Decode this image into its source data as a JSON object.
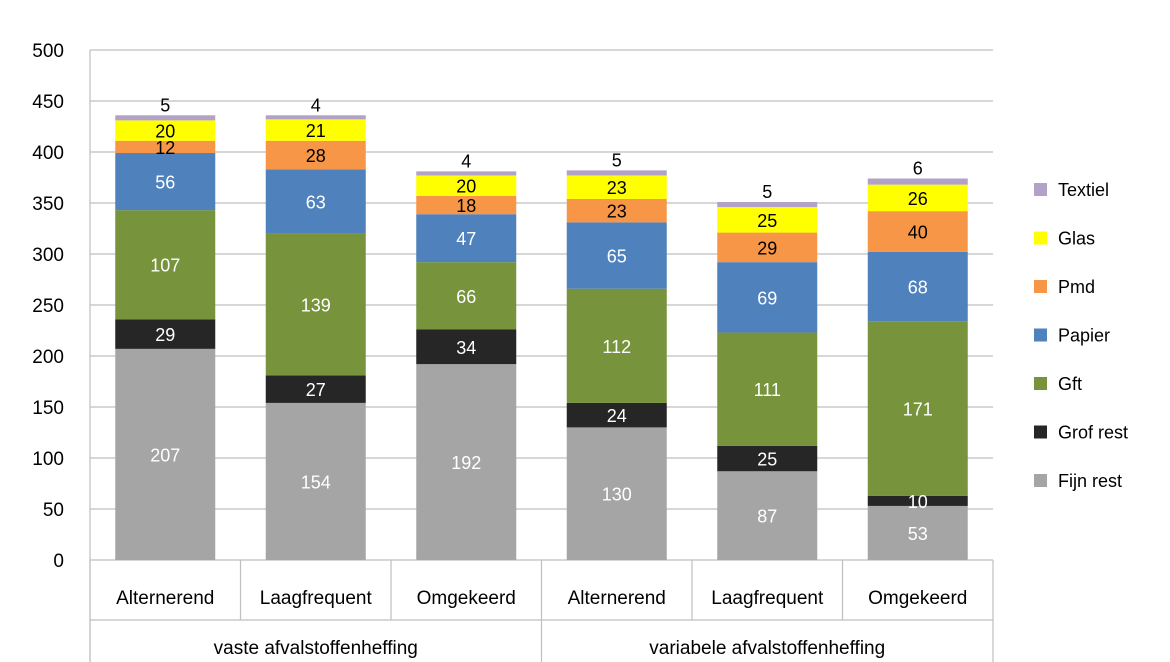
{
  "chart_data": {
    "type": "bar",
    "stacked": true,
    "title": "",
    "xlabel": "",
    "ylabel": "",
    "ylim": [
      0,
      500
    ],
    "yticks": [
      0,
      50,
      100,
      150,
      200,
      250,
      300,
      350,
      400,
      450,
      500
    ],
    "grid": true,
    "legend_position": "right",
    "categories": [
      "Alternerend",
      "Laagfrequent",
      "Omgekeerd",
      "Alternerend",
      "Laagfrequent",
      "Omgekeerd"
    ],
    "groups": [
      {
        "label": "vaste afvalstoffenheffing",
        "categories": [
          0,
          1,
          2
        ]
      },
      {
        "label": "variabele afvalstoffenheffing",
        "categories": [
          3,
          4,
          5
        ]
      }
    ],
    "series": [
      {
        "name": "Fijn rest",
        "color": "#a5a5a5",
        "label_color": "#ffffff",
        "values": [
          207,
          154,
          192,
          130,
          87,
          53
        ]
      },
      {
        "name": "Grof rest",
        "color": "#262626",
        "label_color": "#ffffff",
        "values": [
          29,
          27,
          34,
          24,
          25,
          10
        ]
      },
      {
        "name": "Gft",
        "color": "#77933c",
        "label_color": "#ffffff",
        "values": [
          107,
          139,
          66,
          112,
          111,
          171
        ]
      },
      {
        "name": "Papier",
        "color": "#4f81bd",
        "label_color": "#ffffff",
        "values": [
          56,
          63,
          47,
          65,
          69,
          68
        ]
      },
      {
        "name": "Pmd",
        "color": "#f79646",
        "label_color": "#000000",
        "values": [
          12,
          28,
          18,
          23,
          29,
          40
        ]
      },
      {
        "name": "Glas",
        "color": "#ffff00",
        "label_color": "#000000",
        "values": [
          20,
          21,
          20,
          23,
          25,
          26
        ]
      },
      {
        "name": "Textiel",
        "color": "#b3a2c7",
        "label_color": "#000000",
        "label_above": true,
        "values": [
          5,
          4,
          4,
          5,
          5,
          6
        ]
      }
    ],
    "legend_order": [
      "Textiel",
      "Glas",
      "Pmd",
      "Papier",
      "Gft",
      "Grof rest",
      "Fijn rest"
    ]
  }
}
